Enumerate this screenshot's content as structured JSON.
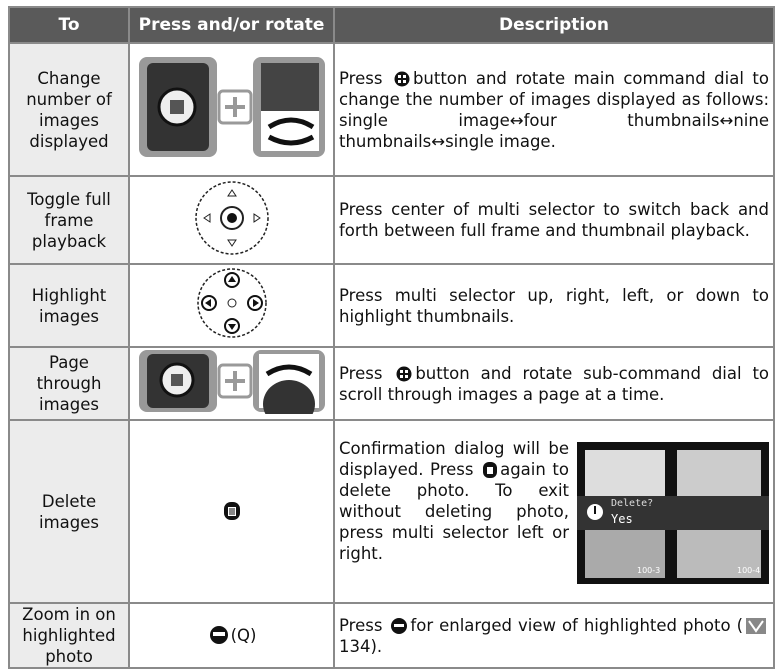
{
  "table": {
    "header": [
      "To",
      "Press and/or rotate",
      "Description"
    ],
    "rows": [
      {
        "to": "Change number of images displayed",
        "description": [
          "Press ",
          "button and rotate main command dial to change the number of images displayed as follows: single image↔four thumbnails↔nine thumbnails↔single image."
        ]
      },
      {
        "to": "Toggle full frame playback",
        "description": [
          "Press center of multi selector to switch back and forth between full frame and thumbnail playback."
        ]
      },
      {
        "to": "Highlight images",
        "description": [
          "Press multi selector up, right, left, or down to highlight thumbnails."
        ]
      },
      {
        "to": "Page through images",
        "description": [
          "Press ",
          "button and rotate sub-command dial to scroll through images a page at a time."
        ]
      },
      {
        "to": "Delete images",
        "description": [
          "Confirmation dialog will be displayed. Press ",
          "again to delete photo. To exit without deleting photo, press multi selector left or right."
        ],
        "dialog": {
          "prompt": "Delete?",
          "option": "Yes",
          "thumb_labels": [
            "100-3",
            "100-4"
          ]
        }
      },
      {
        "to": "Zoom in on highlighted photo",
        "press": "(Q)",
        "description": [
          "Press ",
          "for enlarged view of highlighted photo (",
          "134)."
        ]
      }
    ]
  }
}
